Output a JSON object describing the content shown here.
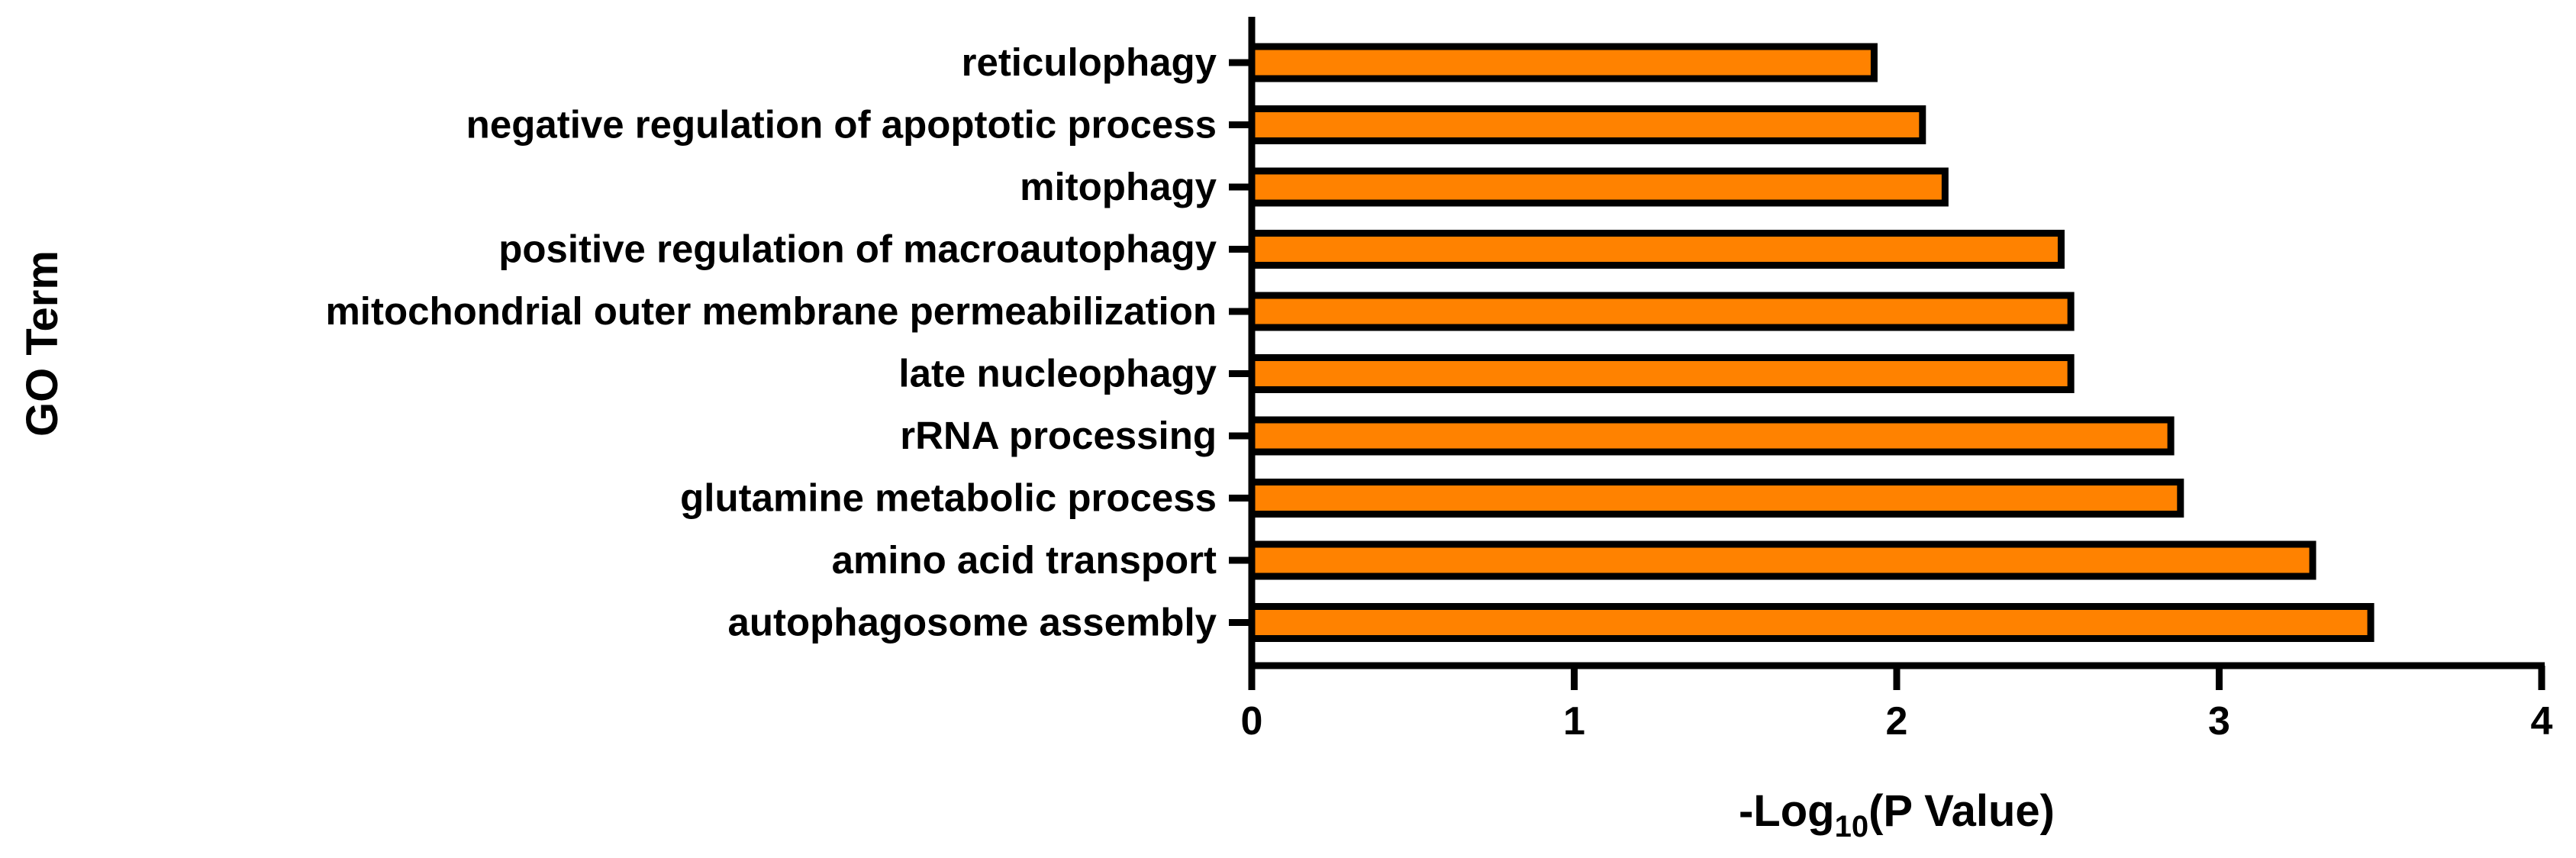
{
  "chart_data": {
    "type": "bar",
    "orientation": "horizontal",
    "title": "",
    "xlabel": "-Log10(P Value)",
    "xlabel_parts": {
      "prefix": "-Log",
      "subscript": "10",
      "suffix": "(P Value)"
    },
    "ylabel": "GO Term",
    "xlim": [
      0,
      4
    ],
    "x_ticks": [
      0,
      1,
      2,
      3,
      4
    ],
    "categories": [
      "reticulophagy",
      "negative regulation of apoptotic process",
      "mitophagy",
      "positive regulation of macroautophagy",
      "mitochondrial outer membrane permeabilization",
      "late nucleophagy",
      "rRNA processing",
      "glutamine metabolic process",
      "amino acid transport",
      "autophagosome assembly"
    ],
    "values": [
      1.93,
      2.08,
      2.15,
      2.51,
      2.54,
      2.54,
      2.85,
      2.88,
      3.29,
      3.47
    ],
    "grid": false,
    "legend": "none",
    "colors": {
      "bar_fill": "#FF8200",
      "bar_stroke": "#000000",
      "axis": "#000000"
    }
  }
}
